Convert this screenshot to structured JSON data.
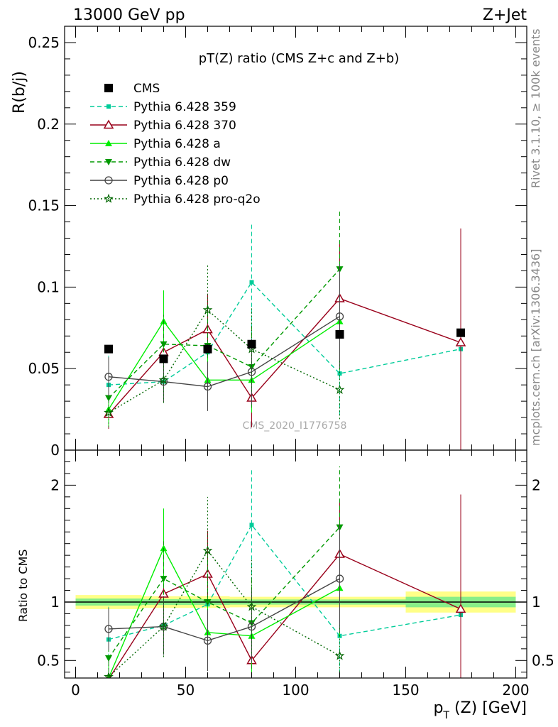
{
  "header": {
    "left": "13000 GeV pp",
    "right": "Z+Jet"
  },
  "side_labels": {
    "rivet": "Rivet 3.1.10, ≥ 100k events",
    "mcplots": "mcplots.cern.ch [arXiv:1306.3436]"
  },
  "watermark": "CMS_2020_I1776758",
  "chart_data": [
    {
      "type": "scatter",
      "panel": "main",
      "title": "pT(Z) ratio (CMS  Z+c and Z+b)",
      "ylabel": "R(b/j)",
      "xlim": [
        -5,
        205
      ],
      "ylim": [
        0,
        0.26
      ],
      "yticks": [
        0,
        0.05,
        0.1,
        0.15,
        0.2,
        0.25
      ],
      "ytick_labels": [
        "0",
        "0.05",
        "0.1",
        "0.15",
        "0.2",
        "0.25"
      ],
      "legend_position": "top-left",
      "grid": false,
      "x": [
        15,
        40,
        60,
        80,
        120,
        175
      ],
      "series": [
        {
          "name": "CMS",
          "color": "#000000",
          "marker": "square",
          "line": "none",
          "values": [
            0.062,
            0.056,
            0.062,
            0.065,
            0.071,
            0.072
          ]
        },
        {
          "name": "Pythia 6.428 359",
          "color": "#00cc99",
          "marker": "small-square",
          "line": "dashed",
          "values": [
            0.04,
            0.042,
            0.06,
            0.103,
            0.047,
            0.062
          ],
          "err": [
            0.018,
            0.013,
            0.035,
            0.037,
            0.025,
            0.064
          ]
        },
        {
          "name": "Pythia 6.428 370",
          "color": "#99001a",
          "marker": "open-triangle",
          "line": "solid",
          "values": [
            0.022,
            0.06,
            0.074,
            0.032,
            0.093,
            0.066
          ],
          "err": [
            0.009,
            0.02,
            0.022,
            0.018,
            0.035,
            0.07
          ]
        },
        {
          "name": "Pythia 6.428 a",
          "color": "#00ee00",
          "marker": "triangle-up",
          "line": "solid",
          "values": [
            0.025,
            0.079,
            0.043,
            0.043,
            0.079,
            null
          ],
          "err": [
            0.01,
            0.019,
            0.018,
            0.02,
            0.03,
            null
          ]
        },
        {
          "name": "Pythia 6.428 dw",
          "color": "#009900",
          "marker": "triangle-down",
          "line": "dashed",
          "values": [
            0.032,
            0.065,
            0.064,
            0.051,
            0.111,
            null
          ],
          "err": [
            0.012,
            0.018,
            0.025,
            0.025,
            0.037,
            null
          ]
        },
        {
          "name": "Pythia 6.428 p0",
          "color": "#444444",
          "marker": "open-circle",
          "line": "solid",
          "values": [
            0.045,
            0.042,
            0.039,
            0.048,
            0.082,
            null
          ],
          "err": [
            0.012,
            0.013,
            0.015,
            0.02,
            0.032,
            null
          ]
        },
        {
          "name": "Pythia 6.428 pro-q2o",
          "color": "#006600",
          "marker": "star",
          "line": "dotted",
          "values": [
            0.023,
            0.043,
            0.086,
            0.062,
            0.037,
            null
          ],
          "err": [
            0.009,
            0.014,
            0.028,
            0.026,
            0.018,
            null
          ]
        }
      ]
    },
    {
      "type": "scatter",
      "panel": "ratio",
      "ylabel": "Ratio to CMS",
      "xlabel": "p_T (Z) [GeV]",
      "xlim": [
        -5,
        205
      ],
      "ylim": [
        0.35,
        2.3
      ],
      "yticks": [
        0.5,
        1,
        2
      ],
      "ytick_labels": [
        "0.5",
        "1",
        "2"
      ],
      "xticks": [
        0,
        50,
        100,
        150,
        200
      ],
      "xtick_labels": [
        "0",
        "50",
        "100",
        "150",
        "200"
      ],
      "reference": 1,
      "bands": {
        "outer_color": "#ffff88",
        "inner_color": "#88ee88",
        "bins": [
          {
            "x": [
              0,
              30
            ],
            "outer": [
              0.94,
              1.06
            ],
            "inner": [
              0.97,
              1.03
            ]
          },
          {
            "x": [
              30,
              50
            ],
            "outer": [
              0.95,
              1.05
            ],
            "inner": [
              0.975,
              1.025
            ]
          },
          {
            "x": [
              50,
              70
            ],
            "outer": [
              0.95,
              1.05
            ],
            "inner": [
              0.975,
              1.025
            ]
          },
          {
            "x": [
              70,
              100
            ],
            "outer": [
              0.955,
              1.045
            ],
            "inner": [
              0.978,
              1.022
            ]
          },
          {
            "x": [
              100,
              150
            ],
            "outer": [
              0.955,
              1.045
            ],
            "inner": [
              0.978,
              1.022
            ]
          },
          {
            "x": [
              150,
              200
            ],
            "outer": [
              0.91,
              1.09
            ],
            "inner": [
              0.955,
              1.045
            ]
          }
        ]
      },
      "x": [
        15,
        40,
        60,
        80,
        120,
        175
      ],
      "series": [
        {
          "name": "Pythia 6.428 359",
          "values": [
            0.68,
            0.8,
            0.98,
            1.66,
            0.71,
            0.89
          ],
          "err": [
            0.28,
            0.25,
            0.55,
            0.48,
            0.38,
            0.89
          ]
        },
        {
          "name": "Pythia 6.428 370",
          "values": [
            0.34,
            1.07,
            1.24,
            0.5,
            1.41,
            0.94
          ],
          "err": [
            0.14,
            0.35,
            0.37,
            0.28,
            0.47,
            0.98
          ]
        },
        {
          "name": "Pythia 6.428 a",
          "values": [
            0.35,
            1.46,
            0.74,
            0.71,
            1.12,
            null
          ],
          "err": [
            0.15,
            0.34,
            0.29,
            0.31,
            0.42,
            null
          ]
        },
        {
          "name": "Pythia 6.428 dw",
          "values": [
            0.52,
            1.2,
            1.0,
            0.82,
            1.64,
            null
          ],
          "err": [
            0.19,
            0.32,
            0.4,
            0.39,
            0.52,
            null
          ]
        },
        {
          "name": "Pythia 6.428 p0",
          "values": [
            0.77,
            0.79,
            0.67,
            0.79,
            1.2,
            null
          ],
          "err": [
            0.18,
            0.24,
            0.26,
            0.31,
            0.46,
            null
          ]
        },
        {
          "name": "Pythia 6.428 pro-q2o",
          "values": [
            0.36,
            0.79,
            1.44,
            0.96,
            0.54,
            null
          ],
          "err": [
            0.15,
            0.26,
            0.46,
            0.4,
            0.26,
            null
          ]
        }
      ]
    }
  ]
}
